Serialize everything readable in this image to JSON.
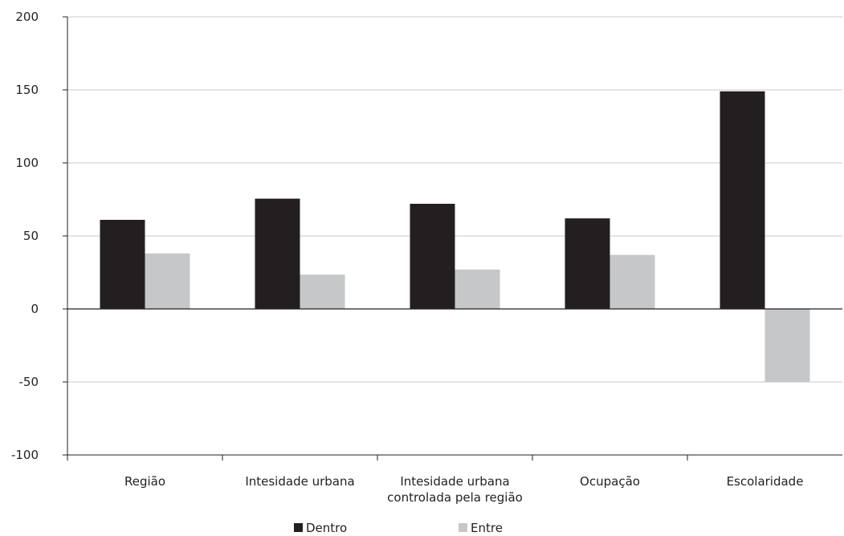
{
  "chart_data": {
    "type": "bar",
    "categories": [
      [
        "Região"
      ],
      [
        "Intesidade urbana"
      ],
      [
        "Intesidade urbana",
        "controlada pela região"
      ],
      [
        "Ocupação"
      ],
      [
        "Escolaridade"
      ]
    ],
    "series": [
      {
        "name": "Dentro",
        "color": "#231f20",
        "values": [
          61,
          75.5,
          72,
          62,
          149
        ]
      },
      {
        "name": "Entre",
        "color": "#c6c7c8",
        "values": [
          38,
          23.5,
          27,
          37,
          -50
        ]
      }
    ],
    "ylim": [
      -100,
      200
    ],
    "yticks": [
      "200",
      "150",
      "100",
      "50",
      "0",
      "-50",
      "-100"
    ],
    "ytick_values": [
      200,
      150,
      100,
      50,
      0,
      -50,
      -100
    ],
    "grid": true,
    "legend": "bottom-center",
    "title": "",
    "xlabel": "",
    "ylabel": ""
  },
  "colors": {
    "axis": "#231f20",
    "grid": "#c8c8c8"
  }
}
